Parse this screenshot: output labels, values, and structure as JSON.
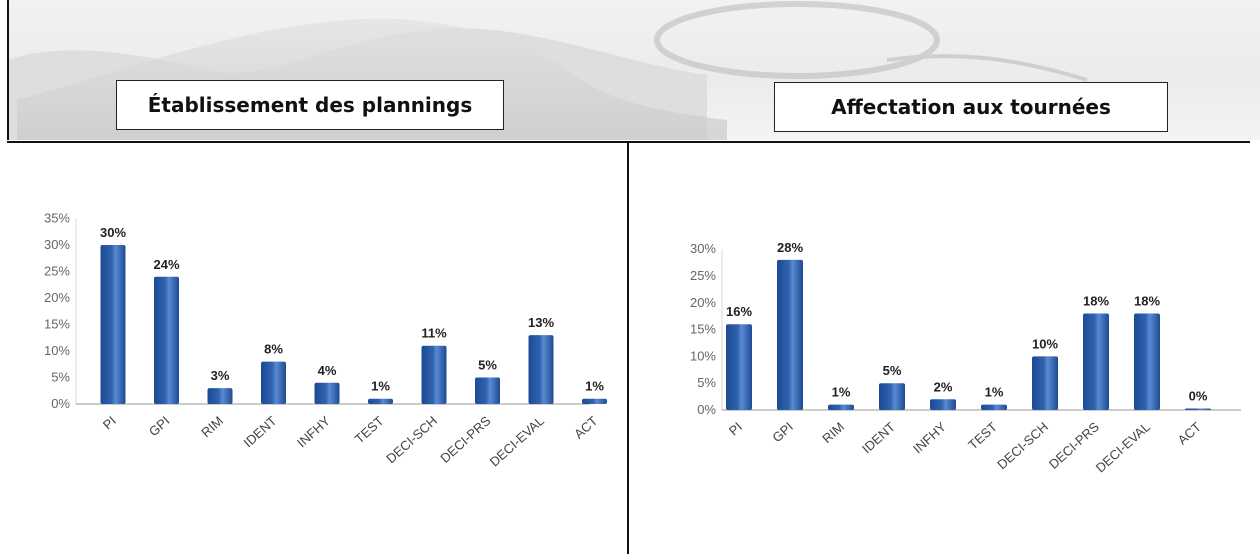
{
  "header": {
    "left_title": "Établissement des plannings",
    "right_title": "Affectation aux tournées"
  },
  "chart_data": [
    {
      "type": "bar",
      "title": "",
      "xlabel": "",
      "ylabel": "",
      "categories": [
        "PI",
        "GPI",
        "RIM",
        "IDENT",
        "INFHY",
        "TEST",
        "DECI-SCH",
        "DECI-PRS",
        "DECI-EVAL",
        "ACT"
      ],
      "values": [
        30,
        24,
        3,
        8,
        4,
        1,
        11,
        5,
        13,
        1
      ],
      "data_labels": [
        "30%",
        "24%",
        "3%",
        "8%",
        "4%",
        "1%",
        "11%",
        "5%",
        "13%",
        "1%"
      ],
      "ylim": [
        0,
        35
      ],
      "yticks": [
        "0%",
        "5%",
        "10%",
        "15%",
        "20%",
        "25%",
        "30%",
        "35%"
      ],
      "grid": false,
      "bar_color": "#2f63b0"
    },
    {
      "type": "bar",
      "title": "",
      "xlabel": "",
      "ylabel": "",
      "categories": [
        "PI",
        "GPI",
        "RIM",
        "IDENT",
        "INFHY",
        "TEST",
        "DECI-SCH",
        "DECI-PRS",
        "DECI-EVAL",
        "ACT"
      ],
      "values": [
        16,
        28,
        1,
        5,
        2,
        1,
        10,
        18,
        18,
        0
      ],
      "data_labels": [
        "16%",
        "28%",
        "1%",
        "5%",
        "2%",
        "1%",
        "10%",
        "18%",
        "18%",
        "0%"
      ],
      "ylim": [
        0,
        30
      ],
      "yticks": [
        "0%",
        "5%",
        "10%",
        "15%",
        "20%",
        "25%",
        "30%"
      ],
      "grid": false,
      "bar_color": "#2f63b0"
    }
  ]
}
